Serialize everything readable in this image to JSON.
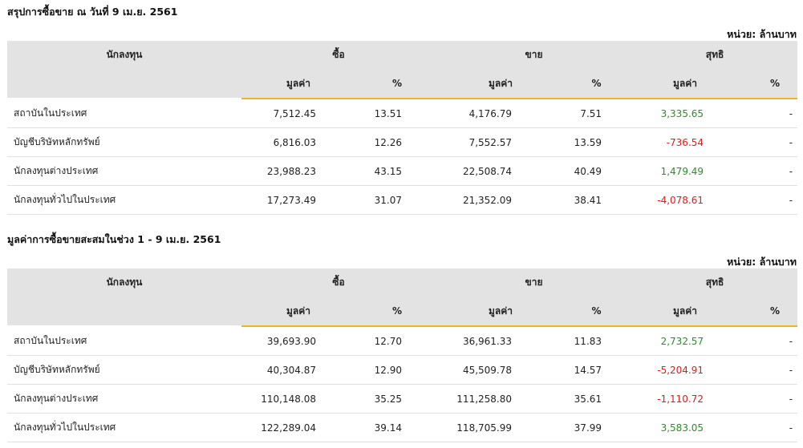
{
  "headers": {
    "investor": "นักลงทุน",
    "buy": "ซื้อ",
    "sell": "ขาย",
    "net": "สุทธิ",
    "value": "มูลค่า",
    "percent": "%"
  },
  "sections": [
    {
      "title": "สรุปการซื้อขาย ณ วันที่ 9 เม.ย. 2561",
      "unit": "หน่วย: ล้านบาท",
      "rows": [
        {
          "name": "สถาบันในประเทศ",
          "buy_value": "7,512.45",
          "buy_pct": "13.51",
          "sell_value": "4,176.79",
          "sell_pct": "7.51",
          "net_value": "3,335.65",
          "net_pct": "-",
          "net_sign": "pos"
        },
        {
          "name": "บัญชีบริษัทหลักทรัพย์",
          "buy_value": "6,816.03",
          "buy_pct": "12.26",
          "sell_value": "7,552.57",
          "sell_pct": "13.59",
          "net_value": "-736.54",
          "net_pct": "-",
          "net_sign": "neg"
        },
        {
          "name": "นักลงทุนต่างประเทศ",
          "buy_value": "23,988.23",
          "buy_pct": "43.15",
          "sell_value": "22,508.74",
          "sell_pct": "40.49",
          "net_value": "1,479.49",
          "net_pct": "-",
          "net_sign": "pos"
        },
        {
          "name": "นักลงทุนทั่วไปในประเทศ",
          "buy_value": "17,273.49",
          "buy_pct": "31.07",
          "sell_value": "21,352.09",
          "sell_pct": "38.41",
          "net_value": "-4,078.61",
          "net_pct": "-",
          "net_sign": "neg"
        }
      ]
    },
    {
      "title": "มูลค่าการซื้อขายสะสมในช่วง 1 - 9 เม.ย. 2561",
      "unit": "หน่วย: ล้านบาท",
      "rows": [
        {
          "name": "สถาบันในประเทศ",
          "buy_value": "39,693.90",
          "buy_pct": "12.70",
          "sell_value": "36,961.33",
          "sell_pct": "11.83",
          "net_value": "2,732.57",
          "net_pct": "-",
          "net_sign": "pos"
        },
        {
          "name": "บัญชีบริษัทหลักทรัพย์",
          "buy_value": "40,304.87",
          "buy_pct": "12.90",
          "sell_value": "45,509.78",
          "sell_pct": "14.57",
          "net_value": "-5,204.91",
          "net_pct": "-",
          "net_sign": "neg"
        },
        {
          "name": "นักลงทุนต่างประเทศ",
          "buy_value": "110,148.08",
          "buy_pct": "35.25",
          "sell_value": "111,258.80",
          "sell_pct": "35.61",
          "net_value": "-1,110.72",
          "net_pct": "-",
          "net_sign": "neg"
        },
        {
          "name": "นักลงทุนทั่วไปในประเทศ",
          "buy_value": "122,289.04",
          "buy_pct": "39.14",
          "sell_value": "118,705.99",
          "sell_pct": "37.99",
          "net_value": "3,583.05",
          "net_pct": "-",
          "net_sign": "pos"
        }
      ]
    }
  ],
  "colors": {
    "header_bg": "#e3e3e3",
    "accent_rule": "#f0b41e",
    "positive": "#2e8b2e",
    "negative": "#e01b1b"
  }
}
